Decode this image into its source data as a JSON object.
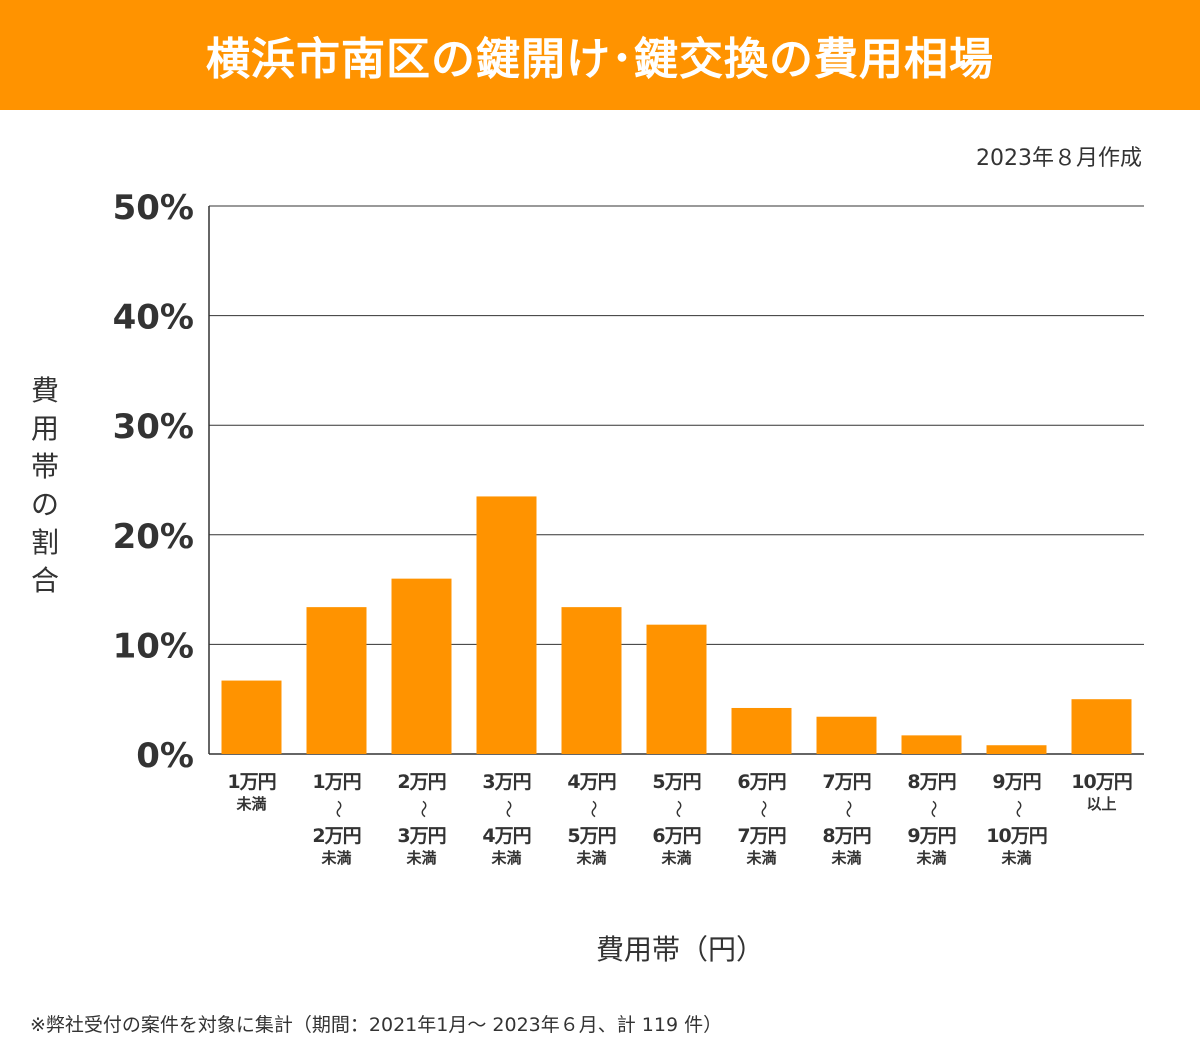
{
  "title": "横浜市南区の鍵開け･鍵交換の費用相場",
  "date": "2023年８月作成",
  "footnote": "※弊社受付の案件を対象に集計（期間：2021年1月～ 2023年６月、計 119 件）",
  "colors": {
    "banner": "#ff9300",
    "bar": "#ff9300",
    "grid": "#333333"
  },
  "chart_data": {
    "type": "bar",
    "title": "横浜市南区の鍵開け･鍵交換の費用相場",
    "xlabel": "費用帯（円）",
    "ylabel": "費用帯の割合",
    "ylim": [
      0,
      50
    ],
    "yticks": [
      "0%",
      "10%",
      "20%",
      "30%",
      "40%",
      "50%"
    ],
    "grid": true,
    "categories": [
      {
        "from": "1万円",
        "to": "",
        "suffix": "未満"
      },
      {
        "from": "1万円",
        "to": "2万円",
        "suffix": "未満"
      },
      {
        "from": "2万円",
        "to": "3万円",
        "suffix": "未満"
      },
      {
        "from": "3万円",
        "to": "4万円",
        "suffix": "未満"
      },
      {
        "from": "4万円",
        "to": "5万円",
        "suffix": "未満"
      },
      {
        "from": "5万円",
        "to": "6万円",
        "suffix": "未満"
      },
      {
        "from": "6万円",
        "to": "7万円",
        "suffix": "未満"
      },
      {
        "from": "7万円",
        "to": "8万円",
        "suffix": "未満"
      },
      {
        "from": "8万円",
        "to": "9万円",
        "suffix": "未満"
      },
      {
        "from": "9万円",
        "to": "10万円",
        "suffix": "未満"
      },
      {
        "from": "10万円",
        "to": "",
        "suffix": "以上"
      }
    ],
    "range_mark": "〜",
    "values": [
      6.7,
      13.4,
      16.0,
      23.5,
      13.4,
      11.8,
      4.2,
      3.4,
      1.7,
      0.8,
      5.0
    ]
  }
}
